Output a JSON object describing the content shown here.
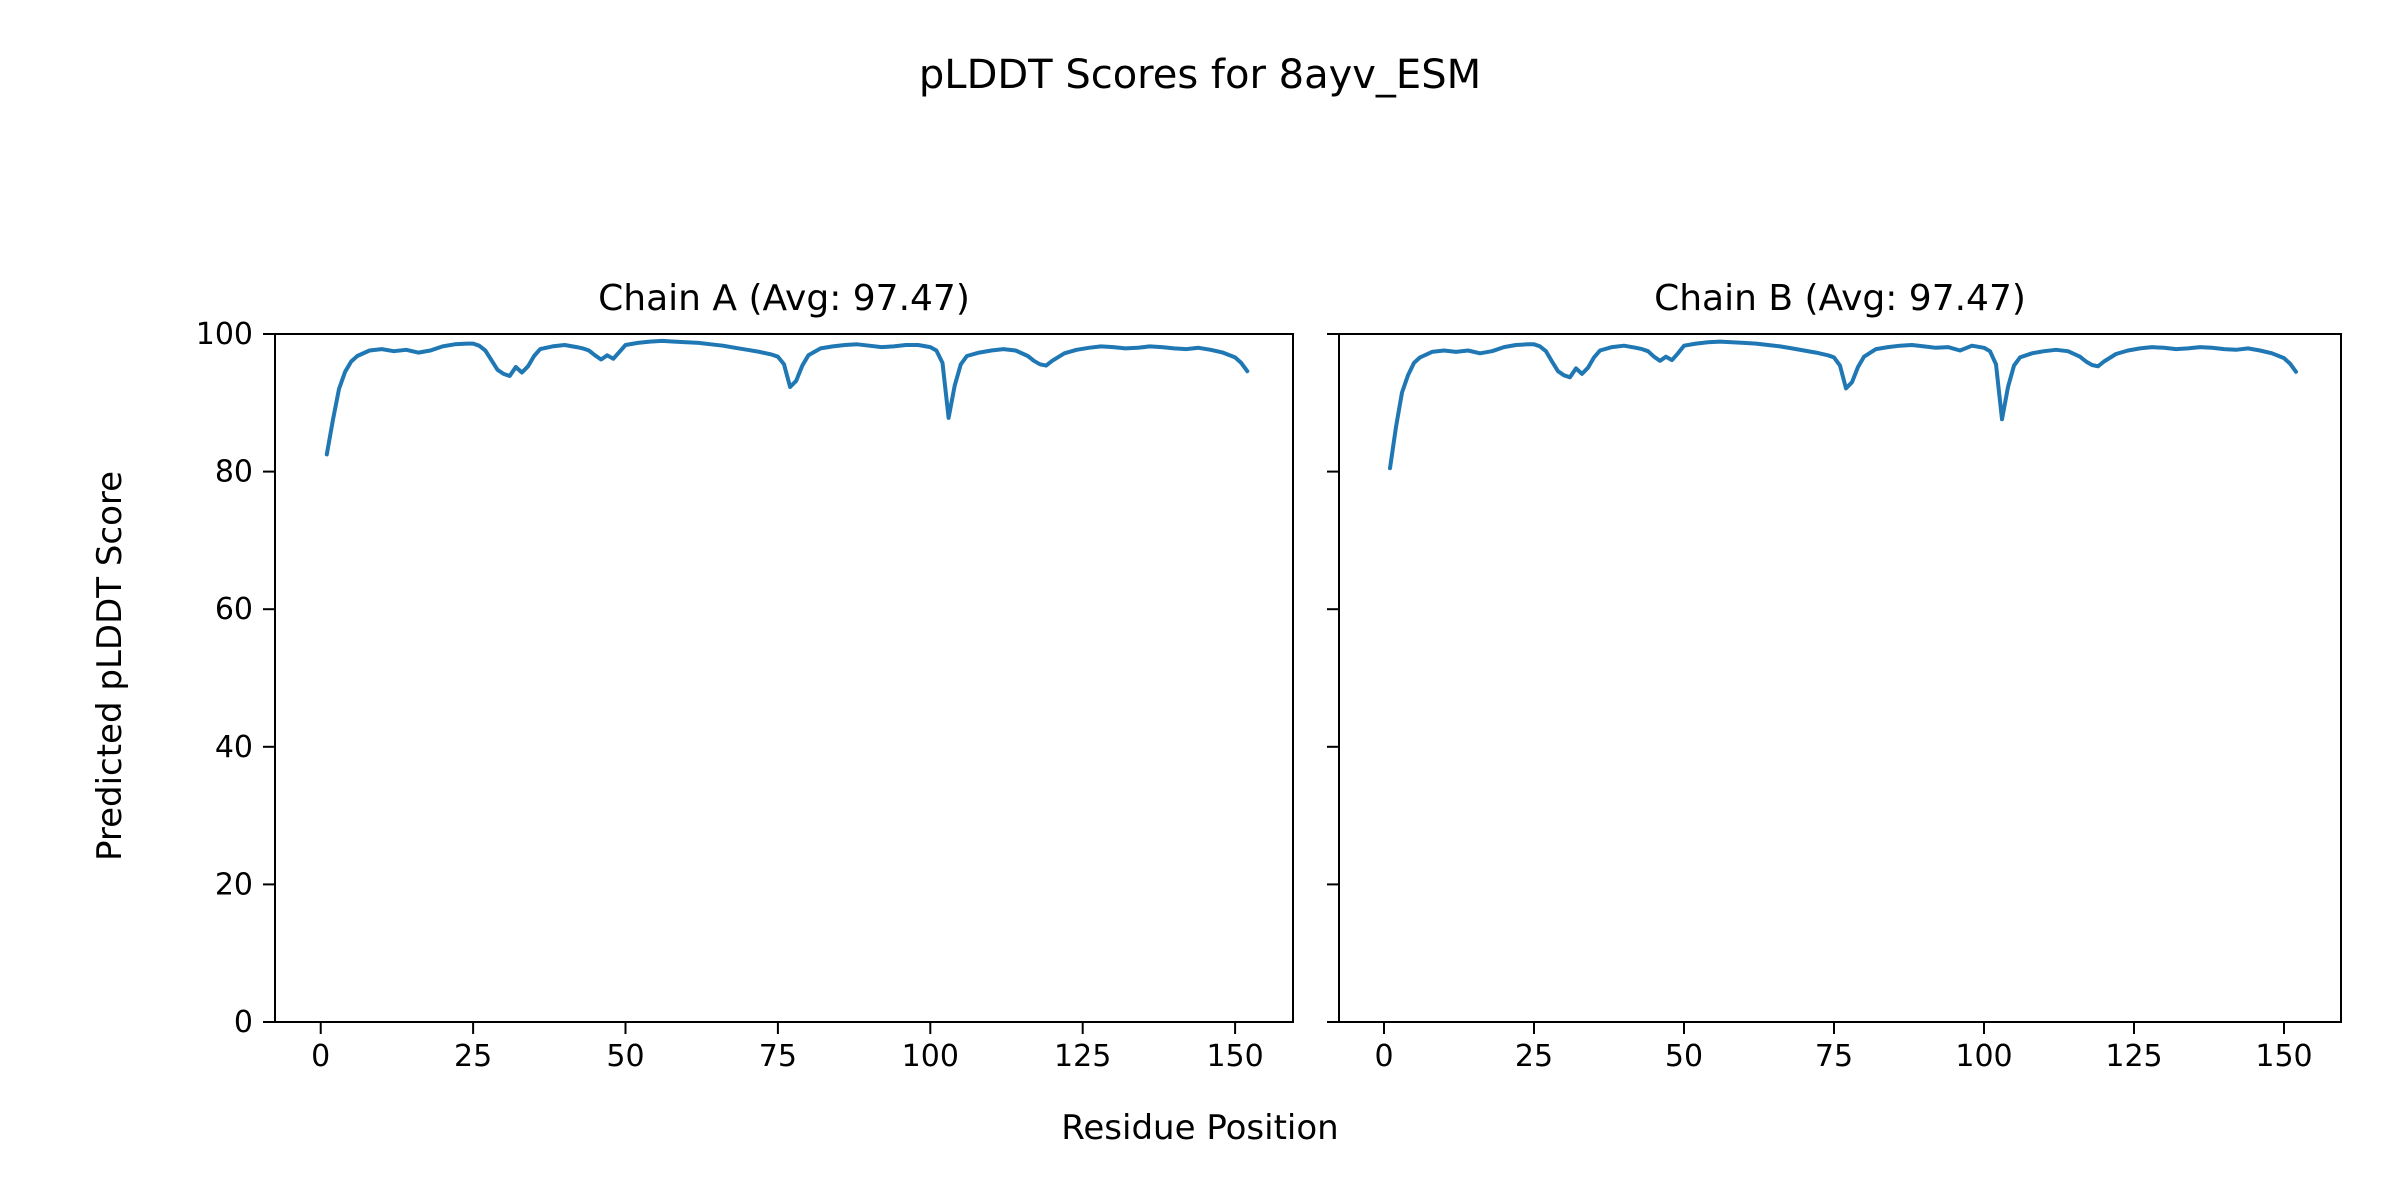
{
  "figure": {
    "title": "pLDDT Scores for 8ayv_ESM",
    "xlabel": "Residue Position",
    "ylabel": "Predicted pLDDT Score"
  },
  "chart_data": [
    {
      "type": "line",
      "title": "Chain A (Avg: 97.47)",
      "avg_plddt": 97.47,
      "xlabel": "Residue Position",
      "ylabel": "Predicted pLDDT Score",
      "xlim": [
        -7.5,
        159.5
      ],
      "ylim": [
        0,
        100
      ],
      "xticks": [
        0,
        25,
        50,
        75,
        100,
        125,
        150
      ],
      "yticks": [
        0,
        20,
        40,
        60,
        80,
        100
      ],
      "show_ytick_labels": true,
      "grid": false,
      "line_color": "#1f77b4",
      "x": [
        1,
        2,
        3,
        4,
        5,
        6,
        8,
        10,
        12,
        14,
        16,
        18,
        20,
        22,
        24,
        25,
        26,
        27,
        28,
        29,
        30,
        31,
        32,
        33,
        34,
        35,
        36,
        38,
        40,
        42,
        43,
        44,
        45,
        46,
        47,
        48,
        49,
        50,
        52,
        54,
        56,
        58,
        60,
        62,
        64,
        66,
        68,
        70,
        72,
        74,
        75,
        76,
        77,
        78,
        79,
        80,
        82,
        84,
        86,
        88,
        90,
        92,
        94,
        96,
        98,
        100,
        101,
        102,
        103,
        104,
        105,
        106,
        108,
        110,
        112,
        114,
        116,
        117,
        118,
        119,
        120,
        122,
        124,
        126,
        128,
        130,
        132,
        134,
        136,
        138,
        140,
        142,
        144,
        146,
        148,
        150,
        151,
        152
      ],
      "y": [
        82.5,
        87.5,
        92,
        94.5,
        96,
        96.8,
        97.6,
        97.8,
        97.5,
        97.7,
        97.3,
        97.6,
        98.2,
        98.5,
        98.6,
        98.6,
        98.3,
        97.6,
        96.2,
        94.8,
        94.2,
        93.9,
        95.2,
        94.4,
        95.3,
        96.8,
        97.8,
        98.2,
        98.4,
        98.1,
        97.9,
        97.6,
        96.9,
        96.3,
        96.9,
        96.4,
        97.4,
        98.4,
        98.7,
        98.9,
        99.0,
        98.9,
        98.8,
        98.7,
        98.5,
        98.3,
        98.0,
        97.7,
        97.4,
        97.0,
        96.7,
        95.6,
        92.3,
        93.2,
        95.4,
        96.9,
        97.9,
        98.2,
        98.4,
        98.5,
        98.3,
        98.1,
        98.2,
        98.4,
        98.4,
        98.1,
        97.6,
        95.8,
        87.8,
        92.5,
        95.6,
        96.8,
        97.3,
        97.6,
        97.8,
        97.6,
        96.8,
        96.1,
        95.6,
        95.4,
        96.1,
        97.2,
        97.7,
        98.0,
        98.2,
        98.1,
        97.9,
        98.0,
        98.2,
        98.1,
        97.9,
        97.8,
        98.0,
        97.7,
        97.3,
        96.6,
        95.8,
        94.6
      ]
    },
    {
      "type": "line",
      "title": "Chain B (Avg: 97.47)",
      "avg_plddt": 97.47,
      "xlabel": "Residue Position",
      "ylabel": "Predicted pLDDT Score",
      "xlim": [
        -7.5,
        159.5
      ],
      "ylim": [
        0,
        100
      ],
      "xticks": [
        0,
        25,
        50,
        75,
        100,
        125,
        150
      ],
      "yticks": [
        0,
        20,
        40,
        60,
        80,
        100
      ],
      "show_ytick_labels": false,
      "grid": false,
      "line_color": "#1f77b4",
      "x": [
        1,
        2,
        3,
        4,
        5,
        6,
        8,
        10,
        12,
        14,
        16,
        18,
        20,
        22,
        24,
        25,
        26,
        27,
        28,
        29,
        30,
        31,
        32,
        33,
        34,
        35,
        36,
        38,
        40,
        42,
        43,
        44,
        45,
        46,
        47,
        48,
        49,
        50,
        52,
        54,
        56,
        58,
        60,
        62,
        64,
        66,
        68,
        70,
        72,
        74,
        75,
        76,
        77,
        78,
        79,
        80,
        82,
        84,
        86,
        88,
        90,
        92,
        94,
        96,
        98,
        100,
        101,
        102,
        103,
        104,
        105,
        106,
        108,
        110,
        112,
        114,
        116,
        117,
        118,
        119,
        120,
        122,
        124,
        126,
        128,
        130,
        132,
        134,
        136,
        138,
        140,
        142,
        144,
        146,
        148,
        150,
        151,
        152
      ],
      "y": [
        80.5,
        86.5,
        91.5,
        94,
        95.8,
        96.6,
        97.4,
        97.6,
        97.4,
        97.6,
        97.2,
        97.5,
        98.1,
        98.4,
        98.5,
        98.5,
        98.2,
        97.5,
        96.0,
        94.6,
        94.0,
        93.7,
        95.0,
        94.2,
        95.1,
        96.6,
        97.6,
        98.1,
        98.3,
        98.0,
        97.8,
        97.5,
        96.7,
        96.1,
        96.7,
        96.2,
        97.2,
        98.3,
        98.6,
        98.8,
        98.9,
        98.8,
        98.7,
        98.6,
        98.4,
        98.2,
        97.9,
        97.6,
        97.3,
        96.9,
        96.6,
        95.4,
        92.1,
        93.0,
        95.2,
        96.7,
        97.8,
        98.1,
        98.3,
        98.4,
        98.2,
        98.0,
        98.1,
        97.6,
        98.3,
        98.0,
        97.5,
        95.6,
        87.6,
        92.3,
        95.4,
        96.6,
        97.2,
        97.5,
        97.7,
        97.5,
        96.7,
        96.0,
        95.5,
        95.3,
        96.0,
        97.1,
        97.6,
        97.9,
        98.1,
        98.0,
        97.8,
        97.9,
        98.1,
        98.0,
        97.8,
        97.7,
        97.9,
        97.6,
        97.2,
        96.5,
        95.7,
        94.5
      ]
    }
  ]
}
